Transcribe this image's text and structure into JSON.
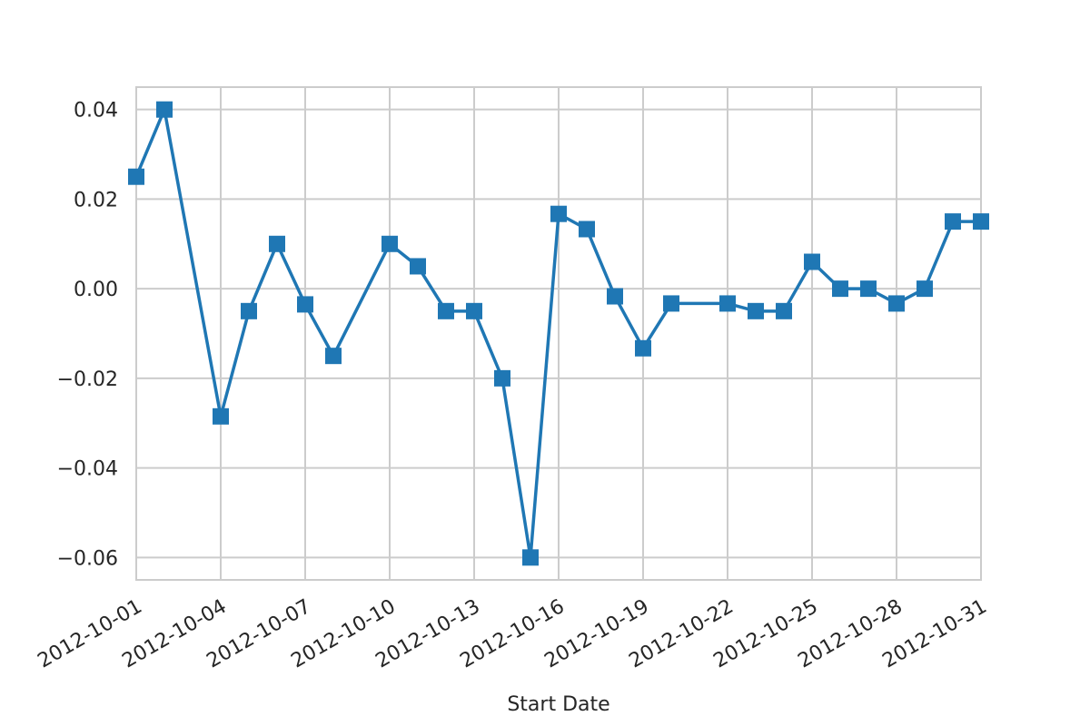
{
  "chart_data": {
    "type": "line",
    "title": "",
    "xlabel": "Start Date",
    "ylabel": "",
    "x_type": "date",
    "xlim": [
      "2012-10-01",
      "2012-10-31"
    ],
    "ylim": [
      -0.065,
      0.045
    ],
    "x_ticks": [
      "2012-10-01",
      "2012-10-04",
      "2012-10-07",
      "2012-10-10",
      "2012-10-13",
      "2012-10-16",
      "2012-10-19",
      "2012-10-22",
      "2012-10-25",
      "2012-10-28",
      "2012-10-31"
    ],
    "y_ticks": [
      0.04,
      0.02,
      0.0,
      -0.02,
      -0.04,
      -0.06
    ],
    "y_tick_labels": [
      "0.04",
      "0.02",
      "0.00",
      "−0.02",
      "−0.04",
      "−0.06"
    ],
    "grid": true,
    "marker": "square",
    "color": "#1f77b4",
    "series": [
      {
        "x": [
          "2012-10-01",
          "2012-10-02",
          "2012-10-04",
          "2012-10-05",
          "2012-10-06",
          "2012-10-07",
          "2012-10-08",
          "2012-10-10",
          "2012-10-11",
          "2012-10-12",
          "2012-10-13",
          "2012-10-14",
          "2012-10-15",
          "2012-10-16",
          "2012-10-17",
          "2012-10-18",
          "2012-10-19",
          "2012-10-20",
          "2012-10-22",
          "2012-10-23",
          "2012-10-24",
          "2012-10-25",
          "2012-10-26",
          "2012-10-27",
          "2012-10-28",
          "2012-10-29",
          "2012-10-30",
          "2012-10-31"
        ],
        "y": [
          0.025,
          0.04,
          -0.0285,
          -0.005,
          0.01,
          -0.0035,
          -0.015,
          0.01,
          0.005,
          -0.005,
          -0.005,
          -0.02,
          -0.06,
          0.0167,
          0.0133,
          -0.0017,
          -0.0133,
          -0.0033,
          -0.0033,
          -0.005,
          -0.005,
          0.006,
          0.0,
          0.0,
          -0.0033,
          0.0,
          0.015,
          0.015
        ]
      }
    ]
  }
}
